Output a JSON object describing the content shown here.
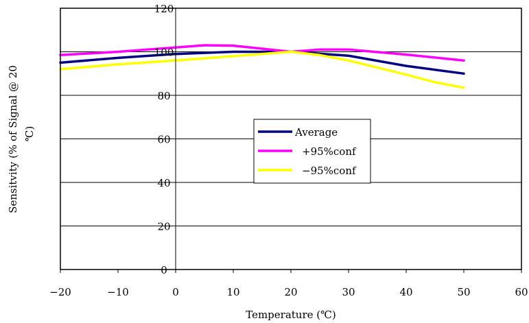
{
  "chart_data": {
    "type": "line",
    "title": "",
    "xlabel": "Temperature (℃)",
    "ylabel_line1": "Sensitvity (% of Signal @ 20",
    "ylabel_line2": "℃)",
    "xlim": [
      -20,
      60
    ],
    "ylim": [
      0,
      120
    ],
    "x_ticks": [
      -20,
      -10,
      0,
      10,
      20,
      30,
      40,
      50,
      60
    ],
    "y_ticks": [
      0,
      20,
      40,
      60,
      80,
      100,
      120
    ],
    "x_tick_labels": [
      "−20",
      "−10",
      "0",
      "10",
      "20",
      "30",
      "40",
      "50",
      "60"
    ],
    "y_tick_labels": [
      "0",
      "20",
      "40",
      "60",
      "80",
      "100",
      "120"
    ],
    "grid": "horizontal",
    "legend_position": "center",
    "series": [
      {
        "name": "Average",
        "color": "#000080",
        "x": [
          -20,
          -10,
          0,
          10,
          20,
          30,
          40,
          50
        ],
        "y": [
          95,
          97.2,
          99,
          100,
          100,
          98.2,
          93.5,
          90
        ]
      },
      {
        "name": "+95%conf",
        "color": "#ff00ff",
        "x": [
          -20,
          -10,
          0,
          5,
          10,
          20,
          25,
          30,
          40,
          50
        ],
        "y": [
          98.5,
          100,
          102,
          103,
          102.8,
          100,
          101,
          101,
          98.7,
          96
        ]
      },
      {
        "name": "−95%conf",
        "color": "#ffff00",
        "x": [
          -20,
          -10,
          0,
          10,
          20,
          25,
          30,
          40,
          45,
          50
        ],
        "y": [
          92,
          94.2,
          96,
          98,
          100,
          98.5,
          96,
          89.5,
          86,
          83.5
        ]
      }
    ]
  }
}
